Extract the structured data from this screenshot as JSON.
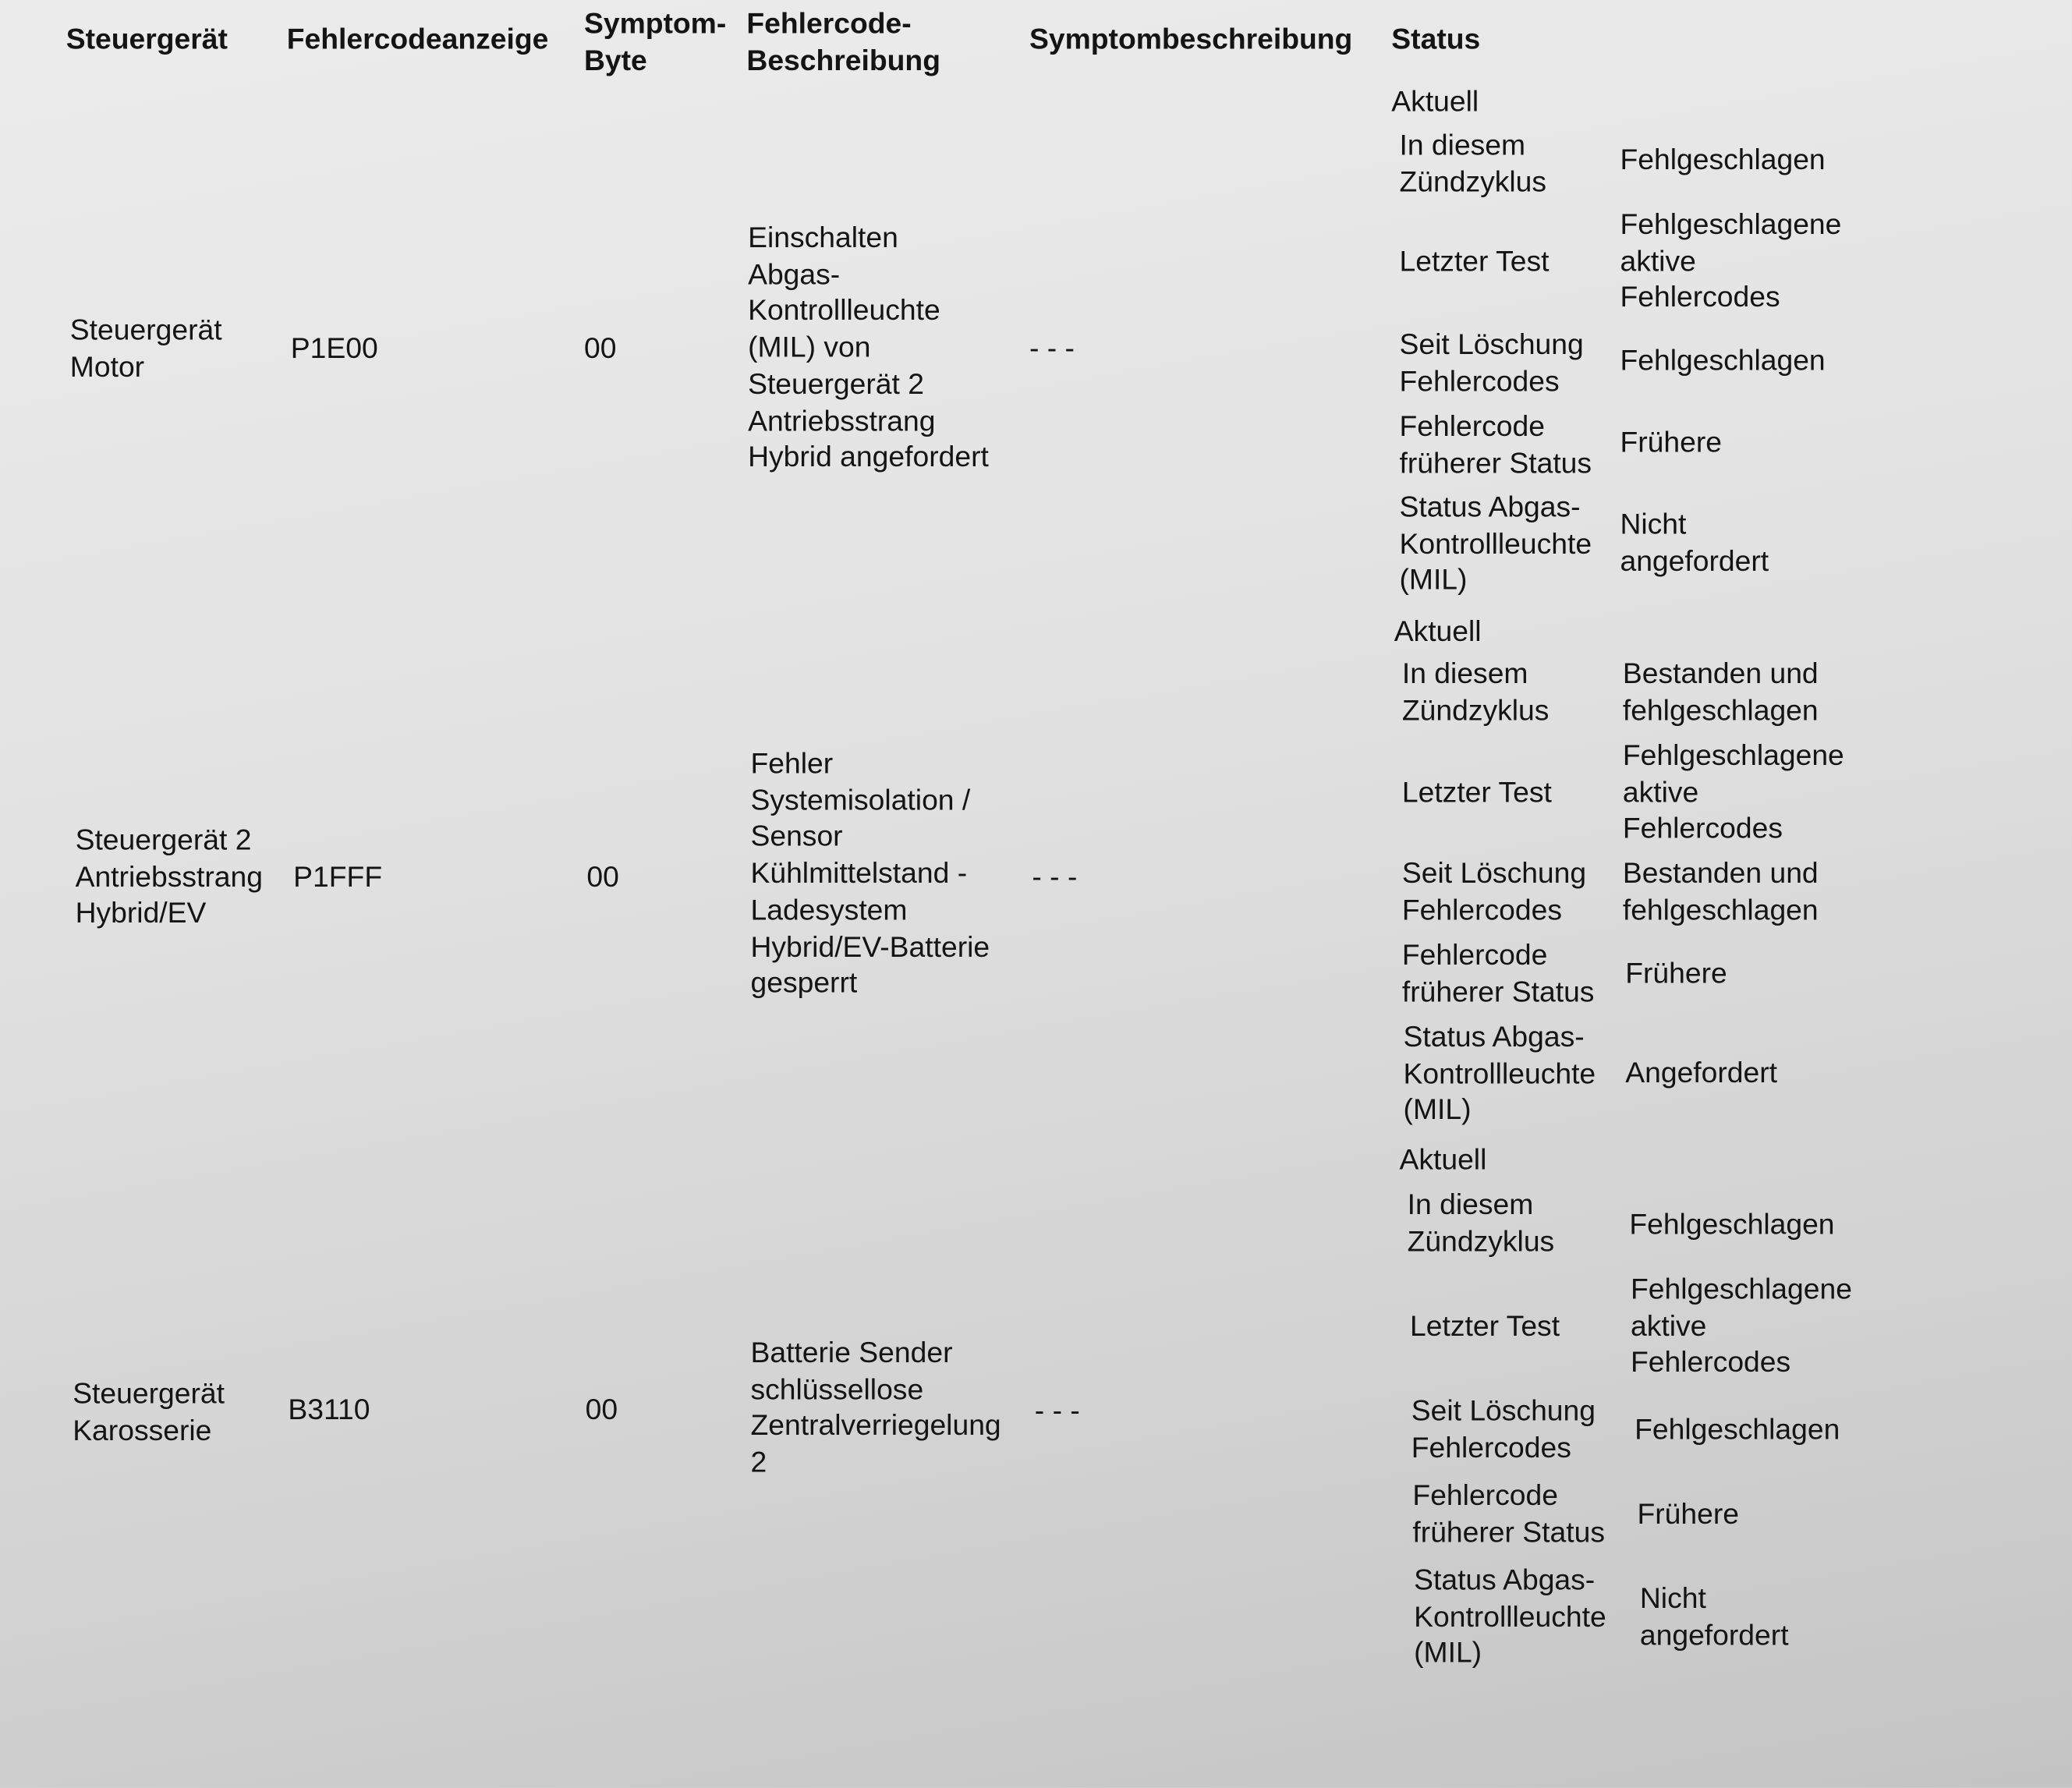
{
  "headers": {
    "ecu": "Steuergerät",
    "code": "Fehlercodeanzeige",
    "byte": "Symptom-\nByte",
    "desc": "Fehlercode-\nBeschreibung",
    "symptom": "Symptombeschreibung",
    "status": "Status"
  },
  "rows": [
    {
      "ecu": "Steuergerät\nMotor",
      "code": "P1E00",
      "byte": "00",
      "desc": "Einschalten\nAbgas-\nKontrollleuchte\n(MIL) von\nSteuergerät 2\nAntriebsstrang\nHybrid angefordert",
      "symptom": "- - -",
      "status": {
        "title": "Aktuell",
        "items": [
          {
            "label": "In diesem\nZündzyklus",
            "value": "Fehlgeschlagen"
          },
          {
            "label": "Letzter Test",
            "value": "Fehlgeschlagene\naktive\nFehlercodes"
          },
          {
            "label": "Seit Löschung\nFehlercodes",
            "value": "Fehlgeschlagen"
          },
          {
            "label": "Fehlercode\nfrüherer Status",
            "value": "Frühere"
          },
          {
            "label": "Status Abgas-\nKontrollleuchte\n(MIL)",
            "value": "Nicht\nangefordert"
          }
        ]
      }
    },
    {
      "ecu": "Steuergerät 2\nAntriebsstrang\nHybrid/EV",
      "code": "P1FFF",
      "byte": "00",
      "desc": "Fehler\nSystemisolation /\nSensor\nKühlmittelstand -\nLadesystem\nHybrid/EV-Batterie\ngesperrt",
      "symptom": "- - -",
      "status": {
        "title": "Aktuell",
        "items": [
          {
            "label": "In diesem\nZündzyklus",
            "value": "Bestanden und\nfehlgeschlagen"
          },
          {
            "label": "Letzter Test",
            "value": "Fehlgeschlagene\naktive\nFehlercodes"
          },
          {
            "label": "Seit Löschung\nFehlercodes",
            "value": "Bestanden und\nfehlgeschlagen"
          },
          {
            "label": "Fehlercode\nfrüherer Status",
            "value": "Frühere"
          },
          {
            "label": "Status Abgas-\nKontrollleuchte\n(MIL)",
            "value": "Angefordert"
          }
        ]
      }
    },
    {
      "ecu": "Steuergerät\nKarosserie",
      "code": "B3110",
      "byte": "00",
      "desc": "Batterie Sender\nschlüssellose\nZentralverriegelung\n2",
      "symptom": "- - -",
      "status": {
        "title": "Aktuell",
        "items": [
          {
            "label": "In diesem\nZündzyklus",
            "value": "Fehlgeschlagen"
          },
          {
            "label": "Letzter Test",
            "value": "Fehlgeschlagene\naktive\nFehlercodes"
          },
          {
            "label": "Seit Löschung\nFehlercodes",
            "value": "Fehlgeschlagen"
          },
          {
            "label": "Fehlercode\nfrüherer Status",
            "value": "Frühere"
          },
          {
            "label": "Status Abgas-\nKontrollleuchte\n(MIL)",
            "value": "Nicht\nangefordert"
          }
        ]
      }
    }
  ]
}
